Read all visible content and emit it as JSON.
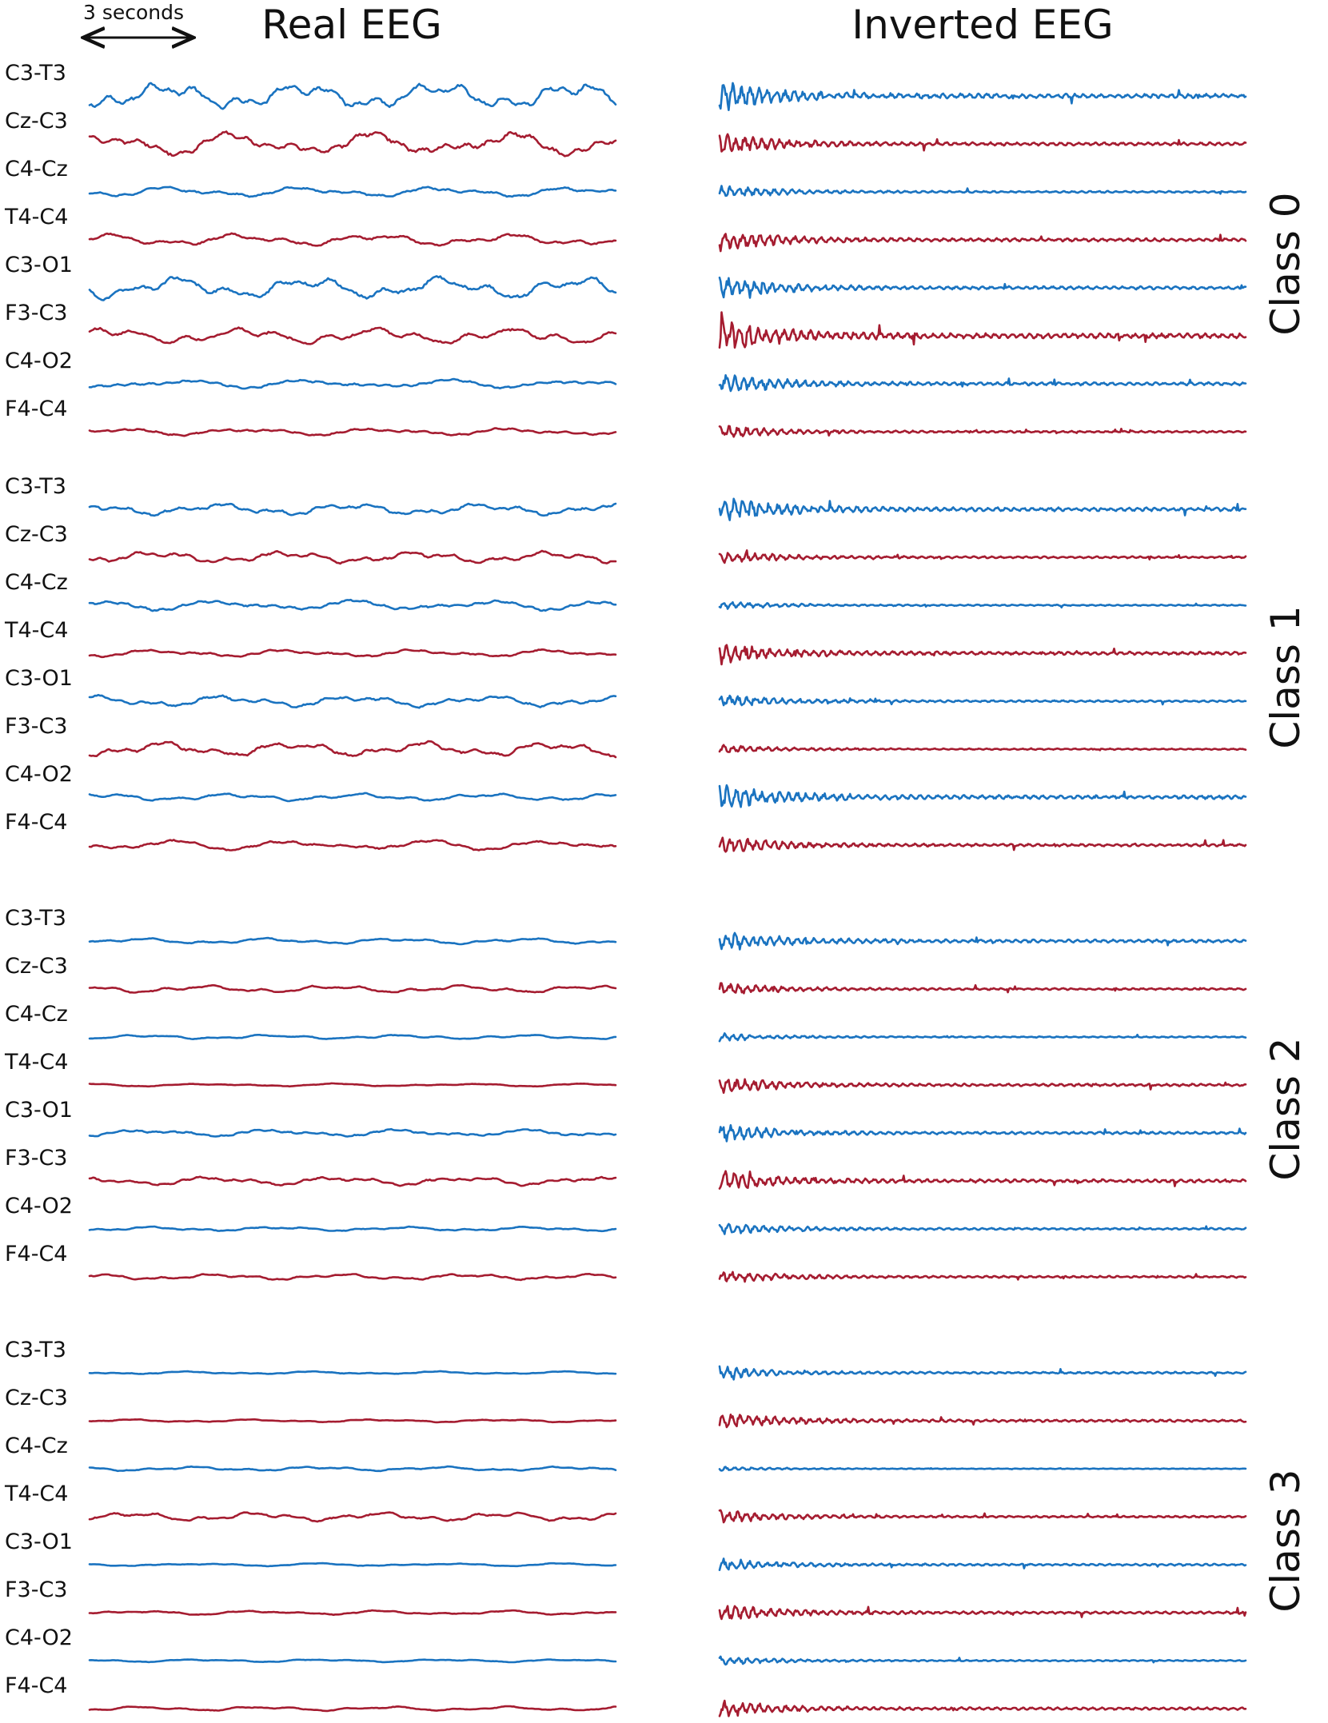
{
  "scale_bar": {
    "label": "3 seconds"
  },
  "titles": {
    "real": "Real EEG",
    "inverted": "Inverted EEG"
  },
  "colors": {
    "blue_trace": "#1a73c0",
    "red_trace": "#a51c30",
    "text": "#111111"
  },
  "channels": [
    "C3-T3",
    "Cz-C3",
    "C4-Cz",
    "T4-C4",
    "C3-O1",
    "F3-C3",
    "C4-O2",
    "F4-C4"
  ],
  "classes": [
    {
      "label": "Class 0",
      "real_amplitude": [
        18,
        16,
        7,
        8,
        15,
        11,
        6,
        5
      ],
      "inverted_amplitude": [
        7,
        5,
        3,
        5,
        5,
        8,
        5,
        3
      ]
    },
    {
      "label": "Class 1",
      "real_amplitude": [
        8,
        8,
        7,
        5,
        8,
        10,
        5,
        7
      ],
      "inverted_amplitude": [
        6,
        3,
        2,
        5,
        3,
        2,
        6,
        4
      ]
    },
    {
      "label": "Class 2",
      "real_amplitude": [
        4,
        5,
        3,
        2,
        5,
        6,
        3,
        4
      ],
      "inverted_amplitude": [
        5,
        3,
        2,
        4,
        4,
        5,
        3,
        3
      ]
    },
    {
      "label": "Class 3",
      "real_amplitude": [
        2,
        2,
        3,
        6,
        2,
        3,
        2,
        3
      ],
      "inverted_amplitude": [
        3,
        4,
        1,
        3,
        3,
        4,
        2,
        4
      ]
    }
  ]
}
